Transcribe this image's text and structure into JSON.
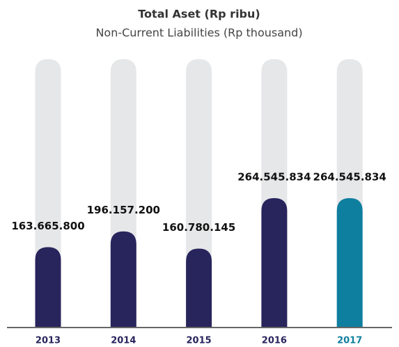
{
  "chart_data": {
    "type": "bar",
    "title": "Total Aset (Rp ribu)",
    "subtitle": "Non-Current Liabilities (Rp thousand)",
    "categories": [
      "2013",
      "2014",
      "2015",
      "2016",
      "2017"
    ],
    "values": [
      163665800,
      196157200,
      160780145,
      264545834,
      264545834
    ],
    "value_labels": [
      "163.665.800",
      "196.157.200",
      "160.780.145",
      "264.545.834",
      "264.545.834"
    ],
    "colors": [
      "#28245c",
      "#28245c",
      "#28245c",
      "#28245c",
      "#0f7f9f"
    ],
    "track_color": "#e6e7e8",
    "ylim": [
      0,
      550000000
    ]
  }
}
